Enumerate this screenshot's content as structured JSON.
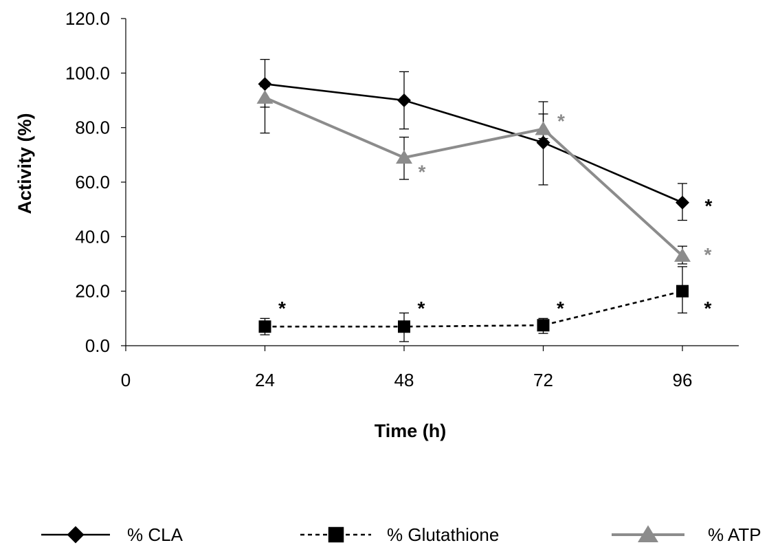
{
  "chart_data": {
    "type": "line",
    "title": "",
    "xlabel": "Time (h)",
    "ylabel": "Activity (%)",
    "xlim": [
      0,
      96
    ],
    "ylim": [
      0,
      120
    ],
    "x_ticks": [
      "0",
      "24",
      "48",
      "72",
      "96"
    ],
    "y_ticks": [
      "0.0",
      "20.0",
      "40.0",
      "60.0",
      "80.0",
      "100.0",
      "120.0"
    ],
    "grid": false,
    "legend_position": "bottom",
    "series": [
      {
        "name": "% CLA",
        "color": "#000000",
        "marker": "diamond",
        "line_style": "solid",
        "x": [
          24,
          48,
          72,
          96
        ],
        "y": [
          96.0,
          90.0,
          74.5,
          52.5
        ],
        "err_low": [
          78.0,
          79.5,
          59.0,
          46.0
        ],
        "err_high": [
          105.0,
          100.5,
          89.5,
          59.5
        ],
        "significance": [
          "",
          "",
          "",
          "*"
        ]
      },
      {
        "name": "% Glutathione",
        "color": "#000000",
        "marker": "square",
        "line_style": "dashed",
        "x": [
          24,
          48,
          72,
          96
        ],
        "y": [
          7.0,
          7.0,
          7.5,
          20.0
        ],
        "err_low": [
          4.0,
          1.5,
          4.5,
          12.0
        ],
        "err_high": [
          10.0,
          12.0,
          10.0,
          29.0
        ],
        "significance": [
          "*",
          "*",
          "*",
          "*"
        ]
      },
      {
        "name": "% ATP",
        "color": "#8c8c8c",
        "marker": "triangle",
        "line_style": "solid",
        "x": [
          24,
          48,
          72,
          96
        ],
        "y": [
          91.0,
          69.0,
          79.5,
          33.0
        ],
        "err_low": [
          87.5,
          61.0,
          76.0,
          30.0
        ],
        "err_high": [
          95.0,
          76.5,
          85.0,
          36.5
        ],
        "significance": [
          "",
          "*",
          "*",
          "*"
        ]
      }
    ]
  }
}
